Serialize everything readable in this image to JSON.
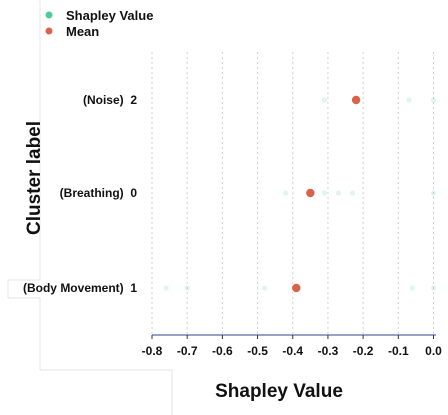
{
  "chart_data": {
    "type": "scatter",
    "xlabel": "Shapley Value",
    "ylabel": "Cluster label",
    "xlim": [
      -0.8,
      0.02
    ],
    "x_ticks": [
      "-0.8",
      "-0.7",
      "-0.6",
      "-0.5",
      "-0.4",
      "-0.3",
      "-0.2",
      "-0.1",
      "0.0"
    ],
    "x_tick_values": [
      -0.8,
      -0.7,
      -0.6,
      -0.5,
      -0.4,
      -0.3,
      -0.2,
      -0.1,
      0.0
    ],
    "categories": [
      "(Noise)  2",
      "(Breathing)  0",
      "(Body Movement)  1"
    ],
    "grid": "vertical dotted",
    "legend": {
      "placement": "top-left",
      "entries": [
        {
          "label": "Shapley Value",
          "color": "#4fc9a2"
        },
        {
          "label": "Mean",
          "color": "#d9634a"
        }
      ]
    },
    "series": [
      {
        "name": "Shapley Value",
        "color": "#4fc9a2",
        "points": [
          {
            "category": "(Noise)  2",
            "x": -0.31
          },
          {
            "category": "(Noise)  2",
            "x": -0.07
          },
          {
            "category": "(Noise)  2",
            "x": 0.0
          },
          {
            "category": "(Breathing)  0",
            "x": -0.42
          },
          {
            "category": "(Breathing)  0",
            "x": -0.31
          },
          {
            "category": "(Breathing)  0",
            "x": -0.27
          },
          {
            "category": "(Breathing)  0",
            "x": -0.23
          },
          {
            "category": "(Breathing)  0",
            "x": 0.0
          },
          {
            "category": "(Body Movement)  1",
            "x": -0.76
          },
          {
            "category": "(Body Movement)  1",
            "x": -0.7
          },
          {
            "category": "(Body Movement)  1",
            "x": -0.48
          },
          {
            "category": "(Body Movement)  1",
            "x": -0.06
          },
          {
            "category": "(Body Movement)  1",
            "x": 0.0
          }
        ]
      },
      {
        "name": "Mean",
        "color": "#d9634a",
        "points": [
          {
            "category": "(Noise)  2",
            "x": -0.22
          },
          {
            "category": "(Breathing)  0",
            "x": -0.35
          },
          {
            "category": "(Body Movement)  1",
            "x": -0.39
          }
        ]
      }
    ]
  }
}
